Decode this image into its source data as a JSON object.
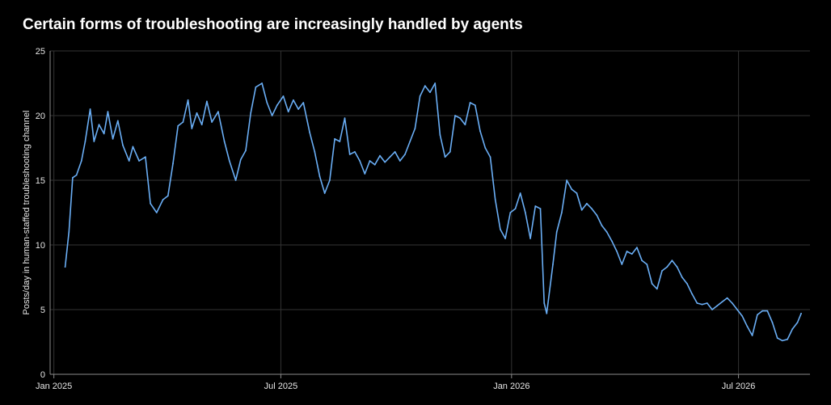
{
  "chart_data": {
    "type": "line",
    "title": "Certain forms of troubleshooting are increasingly handled by agents",
    "xlabel": "",
    "ylabel": "Posts/day in human-staffed troubleshooting channel",
    "x_range": [
      "2024-12-29",
      "2026-08-27"
    ],
    "ylim": [
      0,
      25
    ],
    "y_ticks": [
      "0",
      "5",
      "10",
      "15",
      "20",
      "25"
    ],
    "x_ticks": [
      {
        "label": "Jan 2025",
        "date": "2025-01-01"
      },
      {
        "label": "Jul 2025",
        "date": "2025-07-01"
      },
      {
        "label": "Jan 2026",
        "date": "2026-01-01"
      },
      {
        "label": "Jul 2026",
        "date": "2026-07-01"
      }
    ],
    "grid": true,
    "line_color": "#6aaef5",
    "series": [
      {
        "name": "",
        "points": [
          [
            "2025-01-10",
            8.3
          ],
          [
            "2025-01-13",
            11.0
          ],
          [
            "2025-01-16",
            15.2
          ],
          [
            "2025-01-19",
            15.4
          ],
          [
            "2025-01-23",
            16.5
          ],
          [
            "2025-01-26",
            18.0
          ],
          [
            "2025-01-30",
            20.5
          ],
          [
            "2025-02-02",
            18.0
          ],
          [
            "2025-02-06",
            19.3
          ],
          [
            "2025-02-10",
            18.6
          ],
          [
            "2025-02-13",
            20.3
          ],
          [
            "2025-02-17",
            18.2
          ],
          [
            "2025-02-21",
            19.6
          ],
          [
            "2025-02-25",
            17.7
          ],
          [
            "2025-03-02",
            16.5
          ],
          [
            "2025-03-05",
            17.6
          ],
          [
            "2025-03-10",
            16.5
          ],
          [
            "2025-03-15",
            16.8
          ],
          [
            "2025-03-19",
            13.2
          ],
          [
            "2025-03-24",
            12.5
          ],
          [
            "2025-03-29",
            13.5
          ],
          [
            "2025-04-02",
            13.8
          ],
          [
            "2025-04-06",
            16.3
          ],
          [
            "2025-04-10",
            19.2
          ],
          [
            "2025-04-14",
            19.5
          ],
          [
            "2025-04-18",
            21.2
          ],
          [
            "2025-04-21",
            19.0
          ],
          [
            "2025-04-25",
            20.2
          ],
          [
            "2025-04-29",
            19.3
          ],
          [
            "2025-05-03",
            21.1
          ],
          [
            "2025-05-07",
            19.5
          ],
          [
            "2025-05-12",
            20.3
          ],
          [
            "2025-05-17",
            18.0
          ],
          [
            "2025-05-21",
            16.5
          ],
          [
            "2025-05-26",
            15.0
          ],
          [
            "2025-05-30",
            16.6
          ],
          [
            "2025-06-03",
            17.3
          ],
          [
            "2025-06-07",
            20.2
          ],
          [
            "2025-06-11",
            22.2
          ],
          [
            "2025-06-16",
            22.5
          ],
          [
            "2025-06-20",
            21.0
          ],
          [
            "2025-06-24",
            20.0
          ],
          [
            "2025-06-28",
            20.8
          ],
          [
            "2025-07-03",
            21.5
          ],
          [
            "2025-07-07",
            20.3
          ],
          [
            "2025-07-11",
            21.2
          ],
          [
            "2025-07-15",
            20.5
          ],
          [
            "2025-07-19",
            21.0
          ],
          [
            "2025-07-24",
            18.7
          ],
          [
            "2025-07-28",
            17.2
          ],
          [
            "2025-08-01",
            15.3
          ],
          [
            "2025-08-05",
            14.0
          ],
          [
            "2025-08-09",
            15.0
          ],
          [
            "2025-08-13",
            18.2
          ],
          [
            "2025-08-17",
            18.0
          ],
          [
            "2025-08-21",
            19.8
          ],
          [
            "2025-08-25",
            17.0
          ],
          [
            "2025-08-29",
            17.2
          ],
          [
            "2025-09-02",
            16.5
          ],
          [
            "2025-09-06",
            15.5
          ],
          [
            "2025-09-10",
            16.5
          ],
          [
            "2025-09-14",
            16.2
          ],
          [
            "2025-09-18",
            16.9
          ],
          [
            "2025-09-22",
            16.4
          ],
          [
            "2025-09-26",
            16.8
          ],
          [
            "2025-09-30",
            17.2
          ],
          [
            "2025-10-04",
            16.5
          ],
          [
            "2025-10-08",
            17.0
          ],
          [
            "2025-10-12",
            18.0
          ],
          [
            "2025-10-16",
            19.0
          ],
          [
            "2025-10-20",
            21.5
          ],
          [
            "2025-10-24",
            22.3
          ],
          [
            "2025-10-28",
            21.8
          ],
          [
            "2025-11-01",
            22.5
          ],
          [
            "2025-11-05",
            18.5
          ],
          [
            "2025-11-09",
            16.8
          ],
          [
            "2025-11-13",
            17.2
          ],
          [
            "2025-11-17",
            20.0
          ],
          [
            "2025-11-21",
            19.8
          ],
          [
            "2025-11-25",
            19.3
          ],
          [
            "2025-11-29",
            21.0
          ],
          [
            "2025-12-03",
            20.8
          ],
          [
            "2025-12-07",
            18.8
          ],
          [
            "2025-12-11",
            17.5
          ],
          [
            "2025-12-15",
            16.8
          ],
          [
            "2025-12-19",
            13.5
          ],
          [
            "2025-12-23",
            11.2
          ],
          [
            "2025-12-27",
            10.5
          ],
          [
            "2025-12-31",
            12.5
          ],
          [
            "2026-01-04",
            12.8
          ],
          [
            "2026-01-08",
            14.0
          ],
          [
            "2026-01-12",
            12.5
          ],
          [
            "2026-01-16",
            10.5
          ],
          [
            "2026-01-20",
            13.0
          ],
          [
            "2026-01-24",
            12.8
          ],
          [
            "2026-01-27",
            5.5
          ],
          [
            "2026-01-29",
            4.7
          ],
          [
            "2026-02-03",
            8.5
          ],
          [
            "2026-02-06",
            11.0
          ],
          [
            "2026-02-10",
            12.5
          ],
          [
            "2026-02-14",
            15.0
          ],
          [
            "2026-02-18",
            14.3
          ],
          [
            "2026-02-22",
            14.0
          ],
          [
            "2026-02-26",
            12.7
          ],
          [
            "2026-03-02",
            13.2
          ],
          [
            "2026-03-06",
            12.8
          ],
          [
            "2026-03-10",
            12.3
          ],
          [
            "2026-03-14",
            11.5
          ],
          [
            "2026-03-18",
            11.0
          ],
          [
            "2026-03-22",
            10.3
          ],
          [
            "2026-03-26",
            9.5
          ],
          [
            "2026-03-30",
            8.5
          ],
          [
            "2026-04-03",
            9.5
          ],
          [
            "2026-04-07",
            9.3
          ],
          [
            "2026-04-11",
            9.8
          ],
          [
            "2026-04-15",
            8.8
          ],
          [
            "2026-04-19",
            8.5
          ],
          [
            "2026-04-23",
            7.0
          ],
          [
            "2026-04-27",
            6.6
          ],
          [
            "2026-05-01",
            8.0
          ],
          [
            "2026-05-05",
            8.3
          ],
          [
            "2026-05-09",
            8.8
          ],
          [
            "2026-05-13",
            8.3
          ],
          [
            "2026-05-17",
            7.5
          ],
          [
            "2026-05-21",
            7.0
          ],
          [
            "2026-05-25",
            6.2
          ],
          [
            "2026-05-29",
            5.5
          ],
          [
            "2026-06-02",
            5.4
          ],
          [
            "2026-06-06",
            5.5
          ],
          [
            "2026-06-10",
            5.0
          ],
          [
            "2026-06-14",
            5.3
          ],
          [
            "2026-06-18",
            5.6
          ],
          [
            "2026-06-22",
            5.9
          ],
          [
            "2026-06-26",
            5.5
          ],
          [
            "2026-06-30",
            5.0
          ],
          [
            "2026-07-04",
            4.5
          ],
          [
            "2026-07-08",
            3.7
          ],
          [
            "2026-07-12",
            3.0
          ],
          [
            "2026-07-16",
            4.6
          ],
          [
            "2026-07-20",
            4.9
          ],
          [
            "2026-07-24",
            4.9
          ],
          [
            "2026-07-28",
            4.0
          ],
          [
            "2026-08-01",
            2.8
          ],
          [
            "2026-08-05",
            2.6
          ],
          [
            "2026-08-09",
            2.7
          ],
          [
            "2026-08-13",
            3.5
          ],
          [
            "2026-08-17",
            4.0
          ],
          [
            "2026-08-20",
            4.7
          ]
        ]
      }
    ]
  }
}
